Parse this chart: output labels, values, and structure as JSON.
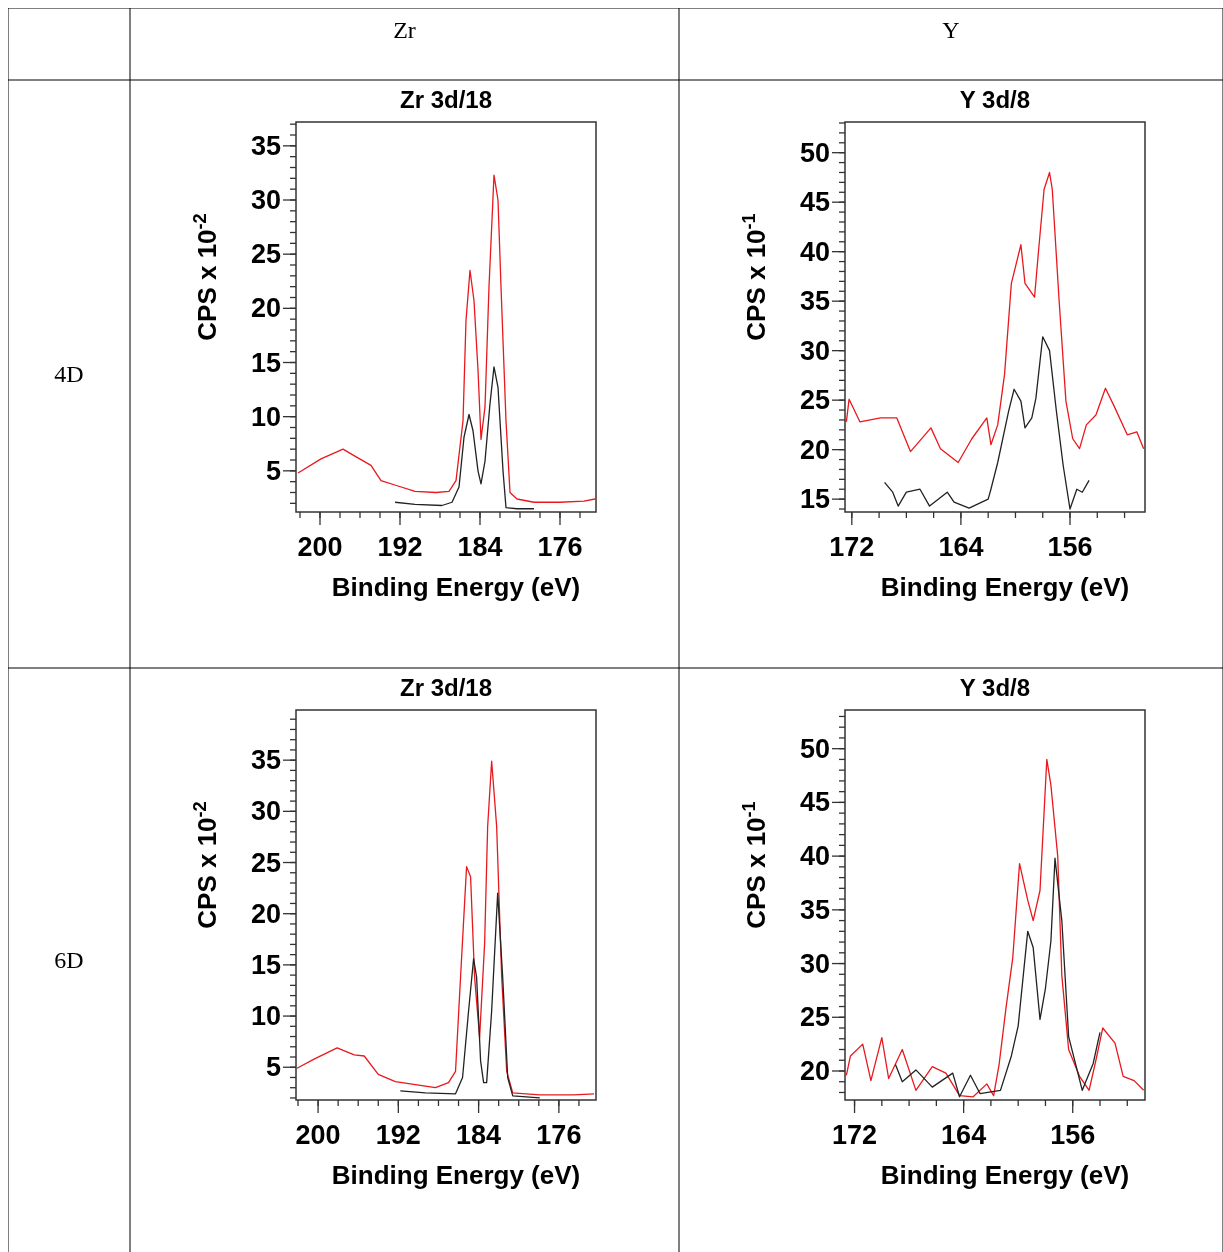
{
  "chart_data": [
    {
      "type": "other",
      "annotations": [
        "Zr",
        "Y",
        "4D",
        "6D"
      ]
    },
    {
      "type": "line",
      "title": "Zr 3d/18",
      "xlabel": "Binding Energy (eV)",
      "ylabel": "CPS x 10$^{-2}$",
      "xlim": [
        202.4,
        172.4
      ],
      "ylim": [
        1.2,
        37.2
      ],
      "xticks": [
        200,
        192,
        184,
        176
      ],
      "yticks": [
        5,
        10,
        15,
        20,
        25,
        30,
        35
      ],
      "series": [
        {
          "color": "#e8191e",
          "x": [
            202.2,
            199.9,
            197.7,
            196.6,
            194.9,
            193.9,
            192.2,
            190.5,
            188.4,
            187.1,
            186.4,
            185.7,
            185.4,
            185.0,
            184.6,
            184.2,
            183.9,
            183.5,
            183.1,
            182.6,
            182.2,
            181.9,
            181.4,
            181.0,
            180.3,
            178.6,
            176.0,
            173.6,
            172.5
          ],
          "values": [
            4.8,
            6.1,
            7.0,
            6.4,
            5.5,
            4.1,
            3.6,
            3.1,
            3.0,
            3.1,
            4.1,
            9.6,
            18.9,
            23.5,
            20.7,
            14.3,
            7.9,
            10.9,
            22.0,
            32.3,
            30.0,
            22.0,
            9.6,
            3.0,
            2.4,
            2.1,
            2.1,
            2.2,
            2.4
          ]
        },
        {
          "color": "#222222",
          "x": [
            192.5,
            190.5,
            187.8,
            186.8,
            186.1,
            185.6,
            185.1,
            184.7,
            184.2,
            183.9,
            183.5,
            183.0,
            182.6,
            182.2,
            181.7,
            181.4,
            180.3,
            178.6
          ],
          "values": [
            2.1,
            1.9,
            1.8,
            2.1,
            3.5,
            8.1,
            10.2,
            8.7,
            5.0,
            3.8,
            5.9,
            11.2,
            14.6,
            12.7,
            5.0,
            1.6,
            1.5,
            1.5
          ]
        }
      ]
    },
    {
      "type": "line",
      "title": "Y 3d/8",
      "xlabel": "Binding Energy (eV)",
      "ylabel": "CPS x 10$^{-1}$",
      "xlim": [
        172.5,
        150.5
      ],
      "ylim": [
        13.7,
        53.1
      ],
      "xticks": [
        172,
        164,
        156
      ],
      "yticks": [
        15,
        20,
        25,
        30,
        35,
        40,
        45,
        50
      ],
      "series": [
        {
          "color": "#e8191e",
          "x": [
            172.4,
            172.2,
            171.4,
            169.9,
            168.7,
            167.7,
            166.2,
            165.5,
            164.2,
            163.2,
            162.1,
            161.8,
            161.3,
            160.8,
            160.3,
            159.6,
            159.3,
            158.6,
            158.3,
            157.9,
            157.5,
            157.3,
            156.8,
            156.3,
            155.8,
            155.3,
            154.8,
            154.1,
            153.4,
            152.8,
            151.8,
            151.1,
            150.6
          ],
          "values": [
            22.8,
            25.1,
            22.8,
            23.2,
            23.2,
            19.8,
            22.2,
            20.1,
            18.7,
            21.1,
            23.2,
            20.5,
            22.5,
            27.6,
            36.8,
            40.7,
            36.8,
            35.4,
            40.2,
            46.3,
            48.0,
            46.3,
            35.1,
            24.9,
            21.1,
            20.1,
            22.5,
            23.5,
            26.2,
            24.5,
            21.5,
            21.8,
            20.1
          ]
        },
        {
          "color": "#222222",
          "x": [
            169.6,
            169.0,
            168.6,
            168.0,
            167.0,
            166.3,
            165.0,
            164.5,
            163.4,
            162.0,
            161.8,
            161.3,
            160.5,
            160.1,
            159.6,
            159.3,
            158.8,
            158.5,
            158.0,
            157.5,
            157.0,
            156.5,
            156.0,
            155.5,
            155.1,
            154.6
          ],
          "values": [
            16.7,
            15.7,
            14.3,
            15.7,
            16.0,
            14.3,
            15.7,
            14.7,
            14.1,
            15.0,
            16.0,
            18.7,
            23.9,
            26.1,
            24.9,
            22.2,
            23.2,
            25.2,
            31.4,
            30.0,
            23.9,
            18.4,
            14.0,
            16.0,
            15.7,
            16.9
          ]
        }
      ]
    },
    {
      "type": "line",
      "title": "Zr 3d/18",
      "xlabel": "Binding Energy (eV)",
      "ylabel": "CPS x 10$^{-2}$",
      "xlim": [
        202.2,
        172.3
      ],
      "ylim": [
        1.8,
        39.9
      ],
      "xticks": [
        200,
        192,
        184,
        176
      ],
      "yticks": [
        5,
        10,
        15,
        20,
        25,
        30,
        35
      ],
      "series": [
        {
          "color": "#e8191e",
          "x": [
            202.1,
            200.4,
            198.1,
            196.4,
            195.4,
            194.0,
            192.3,
            190.3,
            188.3,
            187.0,
            186.3,
            185.8,
            185.2,
            184.8,
            184.4,
            183.9,
            183.4,
            183.1,
            182.7,
            182.2,
            181.7,
            181.2,
            180.6,
            177.9,
            174.5,
            172.5
          ],
          "values": [
            4.9,
            5.8,
            6.9,
            6.2,
            6.1,
            4.3,
            3.6,
            3.3,
            3.0,
            3.5,
            4.6,
            13.8,
            24.6,
            23.6,
            13.8,
            7.9,
            17.1,
            28.5,
            34.9,
            28.5,
            13.8,
            4.6,
            2.5,
            2.3,
            2.3,
            2.4
          ]
        },
        {
          "color": "#222222",
          "x": [
            191.8,
            189.3,
            186.3,
            185.6,
            185.0,
            184.5,
            184.2,
            183.8,
            183.5,
            183.2,
            182.7,
            182.1,
            181.6,
            181.1,
            180.6,
            177.9
          ],
          "values": [
            2.7,
            2.5,
            2.4,
            4.0,
            10.5,
            15.6,
            13.8,
            5.6,
            3.5,
            3.5,
            10.5,
            22.0,
            13.8,
            4.0,
            2.2,
            2.0
          ]
        }
      ]
    },
    {
      "type": "line",
      "title": "Y 3d/8",
      "xlabel": "Binding Energy (eV)",
      "ylabel": "CPS x 10$^{-1}$",
      "xlim": [
        172.7,
        150.7
      ],
      "ylim": [
        17.3,
        53.6
      ],
      "xticks": [
        172,
        164,
        156
      ],
      "yticks": [
        20,
        25,
        30,
        35,
        40,
        45,
        50
      ],
      "series": [
        {
          "color": "#e8191e",
          "x": [
            172.6,
            172.3,
            171.4,
            170.8,
            170.0,
            169.5,
            168.5,
            167.5,
            166.3,
            165.3,
            164.3,
            163.3,
            162.3,
            161.8,
            161.4,
            160.9,
            160.4,
            159.9,
            159.3,
            158.9,
            158.4,
            157.9,
            157.6,
            157.1,
            156.8,
            156.3,
            155.5,
            154.8,
            154.3,
            153.8,
            152.9,
            152.3,
            151.5,
            150.8
          ],
          "values": [
            19.6,
            21.4,
            22.5,
            19.1,
            23.1,
            19.3,
            22.0,
            18.2,
            20.4,
            19.8,
            17.7,
            17.6,
            18.8,
            17.7,
            20.6,
            25.8,
            30.5,
            39.3,
            35.9,
            34.0,
            36.8,
            49.0,
            46.6,
            40.0,
            28.9,
            22.0,
            19.5,
            18.2,
            21.0,
            24.0,
            22.6,
            19.5,
            19.1,
            18.2
          ]
        },
        {
          "color": "#222222",
          "x": [
            169.0,
            168.5,
            167.5,
            166.3,
            164.8,
            164.3,
            163.5,
            162.8,
            161.3,
            160.5,
            160.0,
            159.3,
            158.9,
            158.4,
            158.0,
            157.6,
            157.3,
            156.8,
            156.3,
            155.3,
            154.5,
            154.0
          ],
          "values": [
            20.6,
            19.0,
            20.1,
            18.5,
            19.8,
            17.6,
            19.6,
            17.9,
            18.2,
            21.4,
            24.2,
            33.0,
            31.5,
            24.8,
            27.7,
            32.1,
            39.8,
            34.0,
            23.2,
            18.2,
            20.7,
            23.6
          ]
        }
      ]
    }
  ]
}
